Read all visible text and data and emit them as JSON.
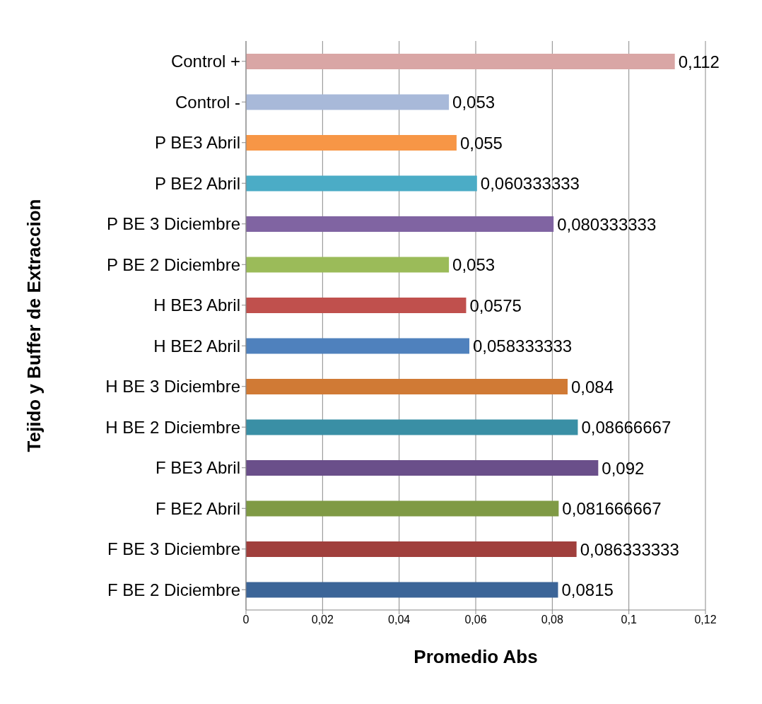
{
  "chart_data": {
    "type": "bar",
    "orientation": "horizontal",
    "xlabel": "Promedio Abs",
    "ylabel": "Tejido y Buffer de Extraccion",
    "categories": [
      "Control +",
      "Control -",
      "P BE3 Abril",
      "P BE2 Abril",
      "P BE 3 Diciembre",
      "P BE 2 Diciembre",
      "H BE3 Abril",
      "H BE2 Abril",
      "H BE 3 Diciembre",
      "H BE 2 Diciembre",
      "F BE3 Abril",
      "F BE2 Abril",
      "F BE 3 Diciembre",
      "F BE 2 Diciembre"
    ],
    "values": [
      0.112,
      0.053,
      0.055,
      0.060333333,
      0.080333333,
      0.053,
      0.0575,
      0.058333333,
      0.084,
      0.08666667,
      0.092,
      0.081666667,
      0.086333333,
      0.0815
    ],
    "value_labels": [
      "0,112",
      "0,053",
      "0,055",
      "0,060333333",
      "0,080333333",
      "0,053",
      "0,0575",
      "0,058333333",
      "0,084",
      "0,08666667",
      "0,092",
      "0,081666667",
      "0,086333333",
      "0,0815"
    ],
    "colors": [
      "#d9a6a5",
      "#a8b9d9",
      "#f79646",
      "#4bacc6",
      "#8064a2",
      "#9bbb59",
      "#c0504d",
      "#4f81bd",
      "#d07a35",
      "#3a8fa5",
      "#6a4f8a",
      "#7f9a45",
      "#a03f3c",
      "#3c6598"
    ],
    "xlim": [
      0,
      0.12
    ],
    "xticks": [
      0,
      {
        "value": 0.02,
        "label": "0,02"
      },
      {
        "value": 0.04,
        "label": "0,04"
      },
      {
        "value": 0.06,
        "label": "0,06"
      },
      {
        "value": 0.08,
        "label": "0,08"
      },
      {
        "value": 0.1,
        "label": "0,1"
      },
      {
        "value": 0.12,
        "label": "0,12"
      }
    ],
    "grid": "x",
    "legend": false
  }
}
